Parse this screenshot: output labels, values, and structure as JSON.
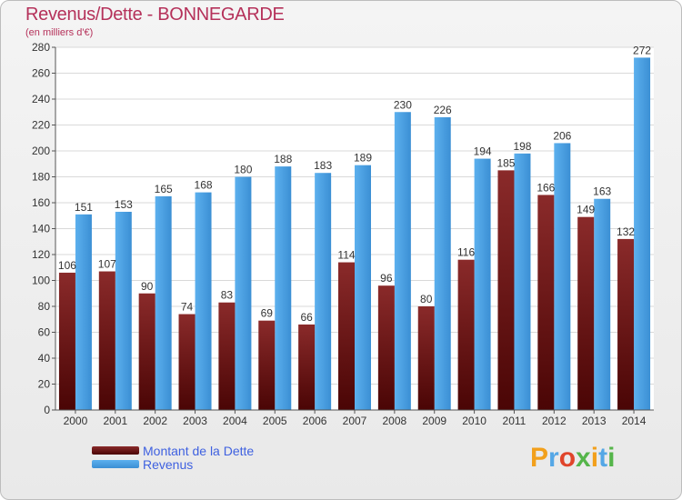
{
  "title": "Revenus/Dette - BONNEGARDE",
  "subtitle": "(en milliers d'€)",
  "colors": {
    "dette": "#6a1414",
    "revenus": "#4ea3e4",
    "title": "#b5315a",
    "legend": "#3f61e0"
  },
  "legend": {
    "dette_label": "Montant de la Dette",
    "revenus_label": "Revenus"
  },
  "logo": {
    "text": "Proxiti"
  },
  "chart_data": {
    "type": "bar",
    "title": "Revenus/Dette - BONNEGARDE",
    "subtitle": "(en milliers d'€)",
    "categories": [
      "2000",
      "2001",
      "2002",
      "2003",
      "2004",
      "2005",
      "2006",
      "2007",
      "2008",
      "2009",
      "2010",
      "2011",
      "2012",
      "2013",
      "2014"
    ],
    "series": [
      {
        "name": "Montant de la Dette",
        "values": [
          106,
          107,
          90,
          74,
          83,
          69,
          66,
          114,
          96,
          80,
          116,
          185,
          166,
          149,
          132
        ]
      },
      {
        "name": "Revenus",
        "values": [
          151,
          153,
          165,
          168,
          180,
          188,
          183,
          189,
          230,
          226,
          194,
          198,
          206,
          163,
          272
        ]
      }
    ],
    "ylim": [
      0,
      280
    ],
    "yticks": [
      0,
      20,
      40,
      60,
      80,
      100,
      120,
      140,
      160,
      180,
      200,
      220,
      240,
      260,
      280
    ],
    "grid": true,
    "legend_position": "bottom-left"
  }
}
